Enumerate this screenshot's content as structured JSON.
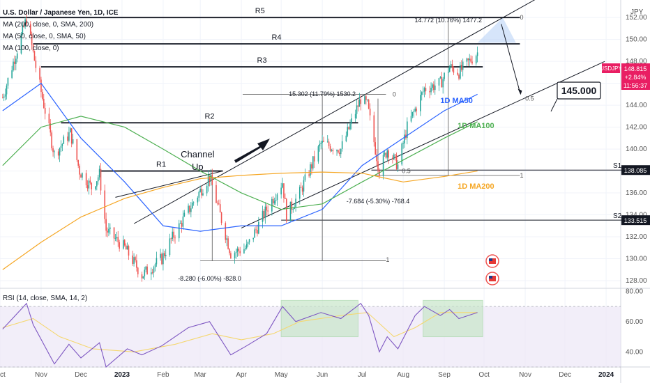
{
  "legend": {
    "title": "U.S. Dollar / Japanese Yen, 1D, ICE",
    "indicators": [
      "MA (200, close, 0, SMA, 200)",
      "MA (50, close, 0, SMA, 50)",
      "MA (100, close, 0)"
    ],
    "rsi": "RSI (14, close, SMA, 14, 2)"
  },
  "currency": "JPY",
  "symbol": "USDJPY",
  "price_box": {
    "price": "148.815",
    "change": "+2.84%",
    "countdown": "11:56:37"
  },
  "price_tags": [
    "138.085",
    "133.515"
  ],
  "colors": {
    "up": "#26a69a",
    "down": "#ef5350",
    "ma50": "#2962ff",
    "ma100": "#4caf50",
    "ma200": "#f5a623",
    "rsi": "#7e57c2",
    "rsi_ma": "#f5d76e",
    "tag": "#131722",
    "badge": "#e91e63"
  },
  "chart_data": [
    {
      "type": "candlestick",
      "title": "U.S. Dollar / Japanese Yen, 1D, ICE",
      "ylim": [
        127.3,
        153.6
      ],
      "y_ticks": [
        128,
        130,
        132,
        134,
        136,
        138,
        140,
        142,
        144,
        146,
        148,
        150,
        152
      ],
      "x_ticks": [
        "Oct",
        "Nov",
        "Dec",
        "2023",
        "Feb",
        "Mar",
        "Apr",
        "May",
        "Jun",
        "Jul",
        "Aug",
        "Sep",
        "Oct",
        "Nov",
        "Dec",
        "2024"
      ],
      "anchors": [
        [
          "2022-10-03",
          144.7
        ],
        [
          "2022-10-21",
          151.9
        ],
        [
          "2022-10-28",
          147.5
        ],
        [
          "2022-11-11",
          139.5
        ],
        [
          "2022-11-23",
          141.5
        ],
        [
          "2022-11-30",
          138.0
        ],
        [
          "2022-12-09",
          136.5
        ],
        [
          "2022-12-15",
          137.7
        ],
        [
          "2022-12-20",
          132.6
        ],
        [
          "2023-01-03",
          131.0
        ],
        [
          "2023-01-16",
          128.5
        ],
        [
          "2023-01-31",
          130.0
        ],
        [
          "2023-02-06",
          131.5
        ],
        [
          "2023-02-28",
          136.0
        ],
        [
          "2023-03-08",
          137.5
        ],
        [
          "2023-03-24",
          130.5
        ],
        [
          "2023-04-05",
          131.0
        ],
        [
          "2023-04-20",
          134.5
        ],
        [
          "2023-05-02",
          137.0
        ],
        [
          "2023-05-05",
          134.0
        ],
        [
          "2023-05-15",
          136.0
        ],
        [
          "2023-05-31",
          140.5
        ],
        [
          "2023-06-15",
          140.0
        ],
        [
          "2023-06-30",
          144.6
        ],
        [
          "2023-07-05",
          144.0
        ],
        [
          "2023-07-14",
          138.0
        ],
        [
          "2023-07-20",
          140.0
        ],
        [
          "2023-07-28",
          138.5
        ],
        [
          "2023-08-04",
          142.0
        ],
        [
          "2023-08-17",
          145.5
        ],
        [
          "2023-08-29",
          146.0
        ],
        [
          "2023-09-05",
          147.5
        ],
        [
          "2023-09-12",
          147.0
        ],
        [
          "2023-09-26",
          148.8
        ]
      ],
      "series": [
        {
          "name": "1D MA50",
          "values": [
            [
              "2022-10-03",
              143.5
            ],
            [
              "2022-11-01",
              146.0
            ],
            [
              "2022-12-01",
              141.0
            ],
            [
              "2023-01-03",
              137.0
            ],
            [
              "2023-02-01",
              133.0
            ],
            [
              "2023-03-01",
              132.5
            ],
            [
              "2023-04-01",
              133.0
            ],
            [
              "2023-05-01",
              133.0
            ],
            [
              "2023-06-01",
              134.5
            ],
            [
              "2023-07-01",
              138.5
            ],
            [
              "2023-08-01",
              141.0
            ],
            [
              "2023-09-01",
              143.5
            ],
            [
              "2023-09-26",
              145.0
            ]
          ]
        },
        {
          "name": "1D MA100",
          "values": [
            [
              "2022-10-03",
              138.5
            ],
            [
              "2022-11-01",
              142.0
            ],
            [
              "2022-12-01",
              143.0
            ],
            [
              "2023-01-03",
              142.0
            ],
            [
              "2023-02-01",
              140.0
            ],
            [
              "2023-03-01",
              138.0
            ],
            [
              "2023-04-01",
              136.0
            ],
            [
              "2023-05-01",
              134.5
            ],
            [
              "2023-06-01",
              135.0
            ],
            [
              "2023-07-01",
              137.0
            ],
            [
              "2023-08-01",
              139.0
            ],
            [
              "2023-09-01",
              141.0
            ],
            [
              "2023-09-26",
              142.5
            ]
          ]
        },
        {
          "name": "1D MA200",
          "values": [
            [
              "2022-10-03",
              129.0
            ],
            [
              "2022-11-01",
              131.5
            ],
            [
              "2022-12-01",
              133.8
            ],
            [
              "2023-01-03",
              135.5
            ],
            [
              "2023-02-01",
              136.5
            ],
            [
              "2023-03-01",
              137.3
            ],
            [
              "2023-04-01",
              137.6
            ],
            [
              "2023-05-01",
              137.8
            ],
            [
              "2023-06-01",
              137.9
            ],
            [
              "2023-07-01",
              137.8
            ],
            [
              "2023-08-01",
              137.0
            ],
            [
              "2023-09-01",
              137.5
            ],
            [
              "2023-09-26",
              138.0
            ]
          ]
        }
      ],
      "levels": [
        {
          "label": "R5",
          "price": 152.0,
          "start": "2022-10-01",
          "end": "2023-10-28"
        },
        {
          "label": "R4",
          "price": 149.6,
          "start": "2022-10-26",
          "end": "2023-10-28"
        },
        {
          "label": "R3",
          "price": 147.5,
          "start": "2022-11-01",
          "end": "2023-09-30"
        },
        {
          "label": "R2",
          "price": 142.4,
          "start": "2022-11-16",
          "end": "2023-06-28"
        },
        {
          "label": "R1",
          "price": 138.0,
          "start": "2022-12-15",
          "end": "2023-03-18"
        },
        {
          "label": "S1",
          "price": 138.085,
          "start": "2023-07-08",
          "end": "2024-01-30"
        },
        {
          "label": "S2",
          "price": 133.515,
          "start": "2023-05-01",
          "end": "2024-01-30"
        }
      ],
      "channel": {
        "upper": [
          [
            "2023-01-10",
            133.2
          ],
          [
            "2023-12-06",
            155.5
          ]
        ],
        "lower": [
          [
            "2023-04-01",
            132.8
          ],
          [
            "2023-12-31",
            148.0
          ]
        ]
      },
      "annotations": {
        "channel_up": [
          "Channel",
          "Up"
        ],
        "target": "145.000",
        "measure_1": "15.302 (11.79%) 1530.2",
        "measure_2": "14.772 (10.76%) 1477.2",
        "measure_3": "-7.684 (-5.30%) -768.4",
        "measure_4": "-8.280 (-6.00%) -828.0",
        "fib": [
          "0",
          "0.5",
          "1"
        ]
      },
      "colors": {
        "up": "#26a69a",
        "down": "#ef5350"
      }
    },
    {
      "type": "line",
      "title": "RSI (14, close, SMA, 14, 2)",
      "ylim": [
        30,
        82
      ],
      "y_ticks": [
        40,
        60,
        80
      ],
      "bands": [
        30,
        70
      ],
      "series": [
        {
          "name": "RSI",
          "values": [
            [
              "2022-10-03",
              55
            ],
            [
              "2022-10-21",
              72
            ],
            [
              "2022-10-26",
              58
            ],
            [
              "2022-11-11",
              32
            ],
            [
              "2022-11-22",
              45
            ],
            [
              "2022-12-01",
              36
            ],
            [
              "2022-12-15",
              46
            ],
            [
              "2022-12-20",
              30
            ],
            [
              "2023-01-05",
              42
            ],
            [
              "2023-01-16",
              38
            ],
            [
              "2023-01-31",
              44
            ],
            [
              "2023-02-20",
              56
            ],
            [
              "2023-03-08",
              60
            ],
            [
              "2023-03-24",
              38
            ],
            [
              "2023-04-05",
              44
            ],
            [
              "2023-04-20",
              52
            ],
            [
              "2023-05-02",
              70
            ],
            [
              "2023-05-12",
              60
            ],
            [
              "2023-05-31",
              66
            ],
            [
              "2023-06-15",
              62
            ],
            [
              "2023-06-30",
              72
            ],
            [
              "2023-07-06",
              64
            ],
            [
              "2023-07-14",
              40
            ],
            [
              "2023-07-20",
              50
            ],
            [
              "2023-07-28",
              42
            ],
            [
              "2023-08-10",
              64
            ],
            [
              "2023-08-17",
              70
            ],
            [
              "2023-08-29",
              64
            ],
            [
              "2023-09-05",
              68
            ],
            [
              "2023-09-12",
              62
            ],
            [
              "2023-09-26",
              66
            ]
          ]
        },
        {
          "name": "RSI MA",
          "values": [
            [
              "2022-10-03",
              56
            ],
            [
              "2022-10-26",
              62
            ],
            [
              "2022-11-15",
              50
            ],
            [
              "2022-12-10",
              42
            ],
            [
              "2023-01-10",
              40
            ],
            [
              "2023-02-10",
              45
            ],
            [
              "2023-03-10",
              52
            ],
            [
              "2023-04-01",
              48
            ],
            [
              "2023-04-25",
              52
            ],
            [
              "2023-05-15",
              60
            ],
            [
              "2023-06-15",
              64
            ],
            [
              "2023-07-05",
              66
            ],
            [
              "2023-07-25",
              50
            ],
            [
              "2023-08-10",
              56
            ],
            [
              "2023-08-29",
              66
            ],
            [
              "2023-09-26",
              66
            ]
          ]
        }
      ],
      "highlights": [
        [
          "2023-05-01",
          "2023-06-28"
        ],
        [
          "2023-08-16",
          "2023-09-30"
        ]
      ]
    }
  ]
}
